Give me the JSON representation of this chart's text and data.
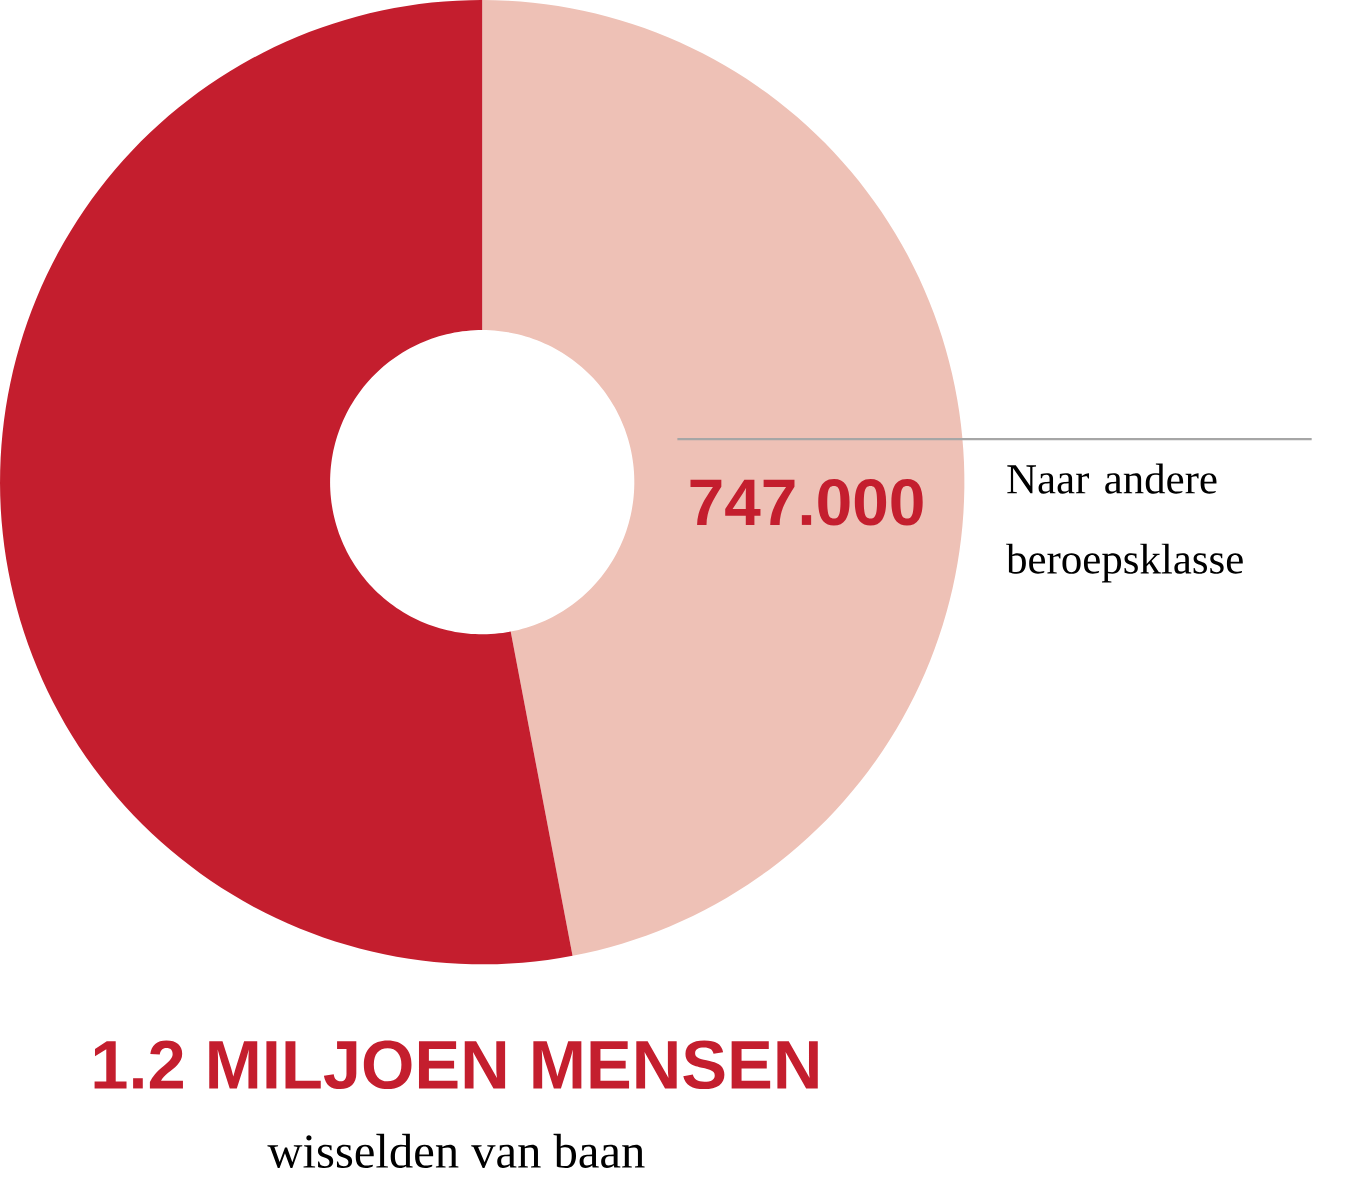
{
  "chart_data": {
    "type": "donut",
    "title": "1.2 MILJOEN MENSEN",
    "subtitle": "wisselden van baan",
    "categories": [
      "Naar andere beroepsklasse",
      null
    ],
    "values": [
      47,
      53
    ],
    "colors": [
      "#eec1b6",
      "#c41e2e"
    ],
    "annotations": [
      "747.000"
    ]
  }
}
